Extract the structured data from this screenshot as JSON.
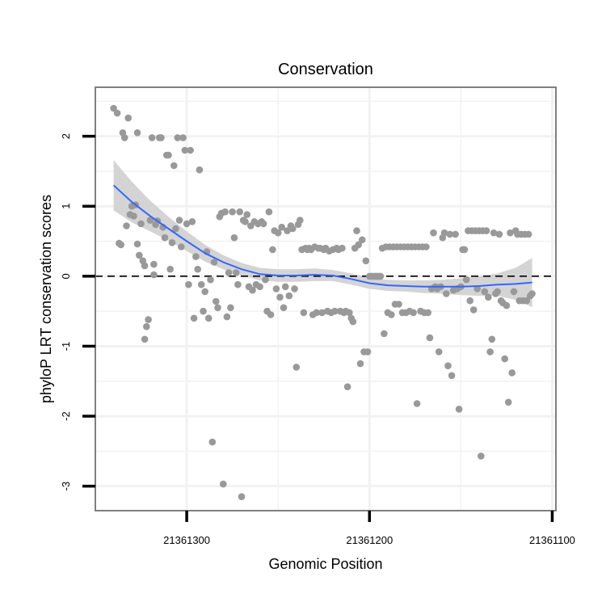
{
  "chart_data": {
    "type": "scatter",
    "title": "Conservation",
    "xlabel": "Genomic Position",
    "ylabel": "phyloP LRT conservation scores",
    "x_reversed": true,
    "xlim": [
      21361350,
      21361098
    ],
    "ylim": [
      -3.35,
      2.7
    ],
    "x_ticks": [
      21361300,
      21361200,
      21361100
    ],
    "x_tick_labels": [
      "21361300",
      "21361200",
      "21361100"
    ],
    "y_ticks": [
      -3,
      -2,
      -1,
      0,
      1,
      2
    ],
    "y_tick_labels": [
      "-3",
      "-2",
      "-1",
      "0",
      "1",
      "2"
    ],
    "reference_line": {
      "y": 0,
      "style": "dashed"
    },
    "colors": {
      "points": "#999999",
      "smooth": "#3366ff",
      "ribbon": "#d4d4d4",
      "panel_border": "#7f7f7f",
      "grid": "#f2f2f2"
    },
    "points": [
      [
        21361340,
        2.4
      ],
      [
        21361338,
        2.33
      ],
      [
        21361337,
        0.47
      ],
      [
        21361336,
        0.45
      ],
      [
        21361335,
        2.05
      ],
      [
        21361334,
        1.98
      ],
      [
        21361333,
        0.72
      ],
      [
        21361332,
        2.26
      ],
      [
        21361331,
        0.88
      ],
      [
        21361330,
        1.0
      ],
      [
        21361329,
        0.86
      ],
      [
        21361328,
        1.02
      ],
      [
        21361327,
        2.05
      ],
      [
        21361327,
        0.46
      ],
      [
        21361326,
        0.3
      ],
      [
        21361325,
        0.75
      ],
      [
        21361324,
        0.22
      ],
      [
        21361323,
        0.15
      ],
      [
        21361323,
        -0.9
      ],
      [
        21361322,
        -0.72
      ],
      [
        21361321,
        -0.62
      ],
      [
        21361320,
        0.8
      ],
      [
        21361319,
        1.98
      ],
      [
        21361318,
        0.02
      ],
      [
        21361318,
        0.17
      ],
      [
        21361317,
        0.74
      ],
      [
        21361316,
        0.79
      ],
      [
        21361315,
        1.98
      ],
      [
        21361314,
        1.98
      ],
      [
        21361313,
        0.7
      ],
      [
        21361312,
        0.55
      ],
      [
        21361311,
        1.73
      ],
      [
        21361310,
        1.73
      ],
      [
        21361309,
        0.1
      ],
      [
        21361308,
        0.48
      ],
      [
        21361307,
        1.58
      ],
      [
        21361306,
        0.68
      ],
      [
        21361305,
        1.98
      ],
      [
        21361304,
        0.8
      ],
      [
        21361303,
        0.42
      ],
      [
        21361302,
        1.98
      ],
      [
        21361301,
        1.8
      ],
      [
        21361300,
        0.75
      ],
      [
        21361299,
        -0.12
      ],
      [
        21361298,
        1.8
      ],
      [
        21361297,
        0.78
      ],
      [
        21361296,
        -0.6
      ],
      [
        21361295,
        0.28
      ],
      [
        21361294,
        0.1
      ],
      [
        21361293,
        1.52
      ],
      [
        21361292,
        -0.12
      ],
      [
        21361291,
        -0.5
      ],
      [
        21361290,
        -0.22
      ],
      [
        21361289,
        0.35
      ],
      [
        21361288,
        -0.6
      ],
      [
        21361287,
        -0.05
      ],
      [
        21361286,
        -2.37
      ],
      [
        21361285,
        0.2
      ],
      [
        21361284,
        -0.36
      ],
      [
        21361283,
        -0.45
      ],
      [
        21361282,
        0.85
      ],
      [
        21361281,
        0.9
      ],
      [
        21361280,
        -2.97
      ],
      [
        21361279,
        0.92
      ],
      [
        21361278,
        -0.58
      ],
      [
        21361277,
        0.05
      ],
      [
        21361276,
        -0.45
      ],
      [
        21361275,
        0.92
      ],
      [
        21361274,
        0.55
      ],
      [
        21361273,
        0.05
      ],
      [
        21361272,
        -0.12
      ],
      [
        21361271,
        0.92
      ],
      [
        21361270,
        -3.15
      ],
      [
        21361269,
        0.8
      ],
      [
        21361268,
        0.78
      ],
      [
        21361267,
        0.88
      ],
      [
        21361266,
        -0.15
      ],
      [
        21361265,
        0.72
      ],
      [
        21361264,
        -0.2
      ],
      [
        21361263,
        0.78
      ],
      [
        21361262,
        -0.12
      ],
      [
        21361261,
        0.75
      ],
      [
        21361260,
        -0.15
      ],
      [
        21361259,
        0.78
      ],
      [
        21361258,
        0.75
      ],
      [
        21361257,
        -0.05
      ],
      [
        21361256,
        -0.5
      ],
      [
        21361255,
        0.92
      ],
      [
        21361254,
        -0.55
      ],
      [
        21361253,
        0.38
      ],
      [
        21361252,
        0.65
      ],
      [
        21361251,
        -0.18
      ],
      [
        21361250,
        0.62
      ],
      [
        21361249,
        -0.3
      ],
      [
        21361248,
        0.7
      ],
      [
        21361247,
        -0.45
      ],
      [
        21361246,
        -0.15
      ],
      [
        21361245,
        0.65
      ],
      [
        21361244,
        -0.28
      ],
      [
        21361243,
        0.72
      ],
      [
        21361242,
        0.68
      ],
      [
        21361241,
        -0.18
      ],
      [
        21361240,
        -1.3
      ],
      [
        21361239,
        0.74
      ],
      [
        21361238,
        0.8
      ],
      [
        21361237,
        0.38
      ],
      [
        21361236,
        -0.52
      ],
      [
        21361235,
        0.4
      ],
      [
        21361234,
        0.38
      ],
      [
        21361233,
        0.4
      ],
      [
        21361232,
        0.38
      ],
      [
        21361231,
        -0.55
      ],
      [
        21361230,
        0.42
      ],
      [
        21361229,
        -0.52
      ],
      [
        21361228,
        0.4
      ],
      [
        21361227,
        0.4
      ],
      [
        21361226,
        -0.52
      ],
      [
        21361225,
        0.38
      ],
      [
        21361224,
        0.4
      ],
      [
        21361223,
        -0.5
      ],
      [
        21361222,
        0.36
      ],
      [
        21361221,
        -0.52
      ],
      [
        21361220,
        0.38
      ],
      [
        21361219,
        -0.5
      ],
      [
        21361218,
        0.4
      ],
      [
        21361217,
        0.38
      ],
      [
        21361216,
        -0.5
      ],
      [
        21361215,
        0.4
      ],
      [
        21361214,
        -0.52
      ],
      [
        21361213,
        -0.5
      ],
      [
        21361212,
        -1.58
      ],
      [
        21361211,
        -0.52
      ],
      [
        21361210,
        -0.6
      ],
      [
        21361209,
        -0.65
      ],
      [
        21361208,
        0.4
      ],
      [
        21361207,
        0.65
      ],
      [
        21361206,
        0.45
      ],
      [
        21361205,
        -1.25
      ],
      [
        21361204,
        0.52
      ],
      [
        21361203,
        -1.08
      ],
      [
        21361202,
        0.22
      ],
      [
        21361201,
        -1.08
      ],
      [
        21361200,
        0.0
      ],
      [
        21361199,
        0.0
      ],
      [
        21361198,
        0.0
      ],
      [
        21361197,
        0.0
      ],
      [
        21361196,
        0.0
      ],
      [
        21361195,
        0.0
      ],
      [
        21361194,
        0.0
      ],
      [
        21361193,
        0.4
      ],
      [
        21361192,
        -0.82
      ],
      [
        21361191,
        0.42
      ],
      [
        21361190,
        -0.52
      ],
      [
        21361189,
        0.42
      ],
      [
        21361188,
        -0.55
      ],
      [
        21361187,
        0.42
      ],
      [
        21361186,
        -0.4
      ],
      [
        21361185,
        0.42
      ],
      [
        21361184,
        -0.4
      ],
      [
        21361183,
        0.42
      ],
      [
        21361182,
        -0.52
      ],
      [
        21361181,
        0.42
      ],
      [
        21361180,
        -0.52
      ],
      [
        21361179,
        0.42
      ],
      [
        21361178,
        -0.5
      ],
      [
        21361177,
        0.42
      ],
      [
        21361176,
        -0.52
      ],
      [
        21361175,
        0.42
      ],
      [
        21361174,
        -1.82
      ],
      [
        21361173,
        0.42
      ],
      [
        21361172,
        -0.5
      ],
      [
        21361171,
        0.42
      ],
      [
        21361170,
        -0.52
      ],
      [
        21361169,
        0.42
      ],
      [
        21361168,
        -0.52
      ],
      [
        21361167,
        -0.88
      ],
      [
        21361166,
        -0.18
      ],
      [
        21361165,
        0.62
      ],
      [
        21361164,
        -0.15
      ],
      [
        21361163,
        -0.18
      ],
      [
        21361162,
        -1.08
      ],
      [
        21361161,
        -0.15
      ],
      [
        21361160,
        0.55
      ],
      [
        21361159,
        0.62
      ],
      [
        21361158,
        -0.25
      ],
      [
        21361157,
        -1.28
      ],
      [
        21361156,
        0.6
      ],
      [
        21361155,
        -1.42
      ],
      [
        21361154,
        -0.2
      ],
      [
        21361153,
        0.6
      ],
      [
        21361152,
        -0.18
      ],
      [
        21361151,
        -1.9
      ],
      [
        21361150,
        -0.15
      ],
      [
        21361149,
        0.38
      ],
      [
        21361148,
        0.38
      ],
      [
        21361147,
        -0.05
      ],
      [
        21361146,
        0.65
      ],
      [
        21361145,
        -0.35
      ],
      [
        21361144,
        0.65
      ],
      [
        21361143,
        -0.48
      ],
      [
        21361142,
        0.65
      ],
      [
        21361141,
        -0.18
      ],
      [
        21361140,
        0.65
      ],
      [
        21361139,
        -2.57
      ],
      [
        21361138,
        0.65
      ],
      [
        21361137,
        -0.22
      ],
      [
        21361136,
        0.65
      ],
      [
        21361135,
        -0.3
      ],
      [
        21361134,
        -1.08
      ],
      [
        21361133,
        -0.9
      ],
      [
        21361132,
        0.62
      ],
      [
        21361131,
        -0.25
      ],
      [
        21361130,
        -0.22
      ],
      [
        21361129,
        0.6
      ],
      [
        21361128,
        -0.35
      ],
      [
        21361127,
        -0.38
      ],
      [
        21361126,
        -1.18
      ],
      [
        21361125,
        -0.42
      ],
      [
        21361124,
        -1.8
      ],
      [
        21361123,
        0.62
      ],
      [
        21361122,
        -1.38
      ],
      [
        21361121,
        -0.22
      ],
      [
        21361120,
        0.65
      ],
      [
        21361119,
        0.6
      ],
      [
        21361118,
        -0.35
      ],
      [
        21361117,
        0.6
      ],
      [
        21361116,
        -0.35
      ],
      [
        21361115,
        0.6
      ],
      [
        21361114,
        -0.35
      ],
      [
        21361113,
        0.6
      ],
      [
        21361112,
        -0.28
      ],
      [
        21361111,
        -0.25
      ]
    ],
    "smooth_line": {
      "x": [
        21361340,
        21361330,
        21361320,
        21361310,
        21361300,
        21361290,
        21361280,
        21361270,
        21361260,
        21361250,
        21361240,
        21361230,
        21361220,
        21361210,
        21361200,
        21361190,
        21361180,
        21361170,
        21361160,
        21361150,
        21361140,
        21361130,
        21361120,
        21361111
      ],
      "y": [
        1.3,
        1.06,
        0.86,
        0.68,
        0.5,
        0.33,
        0.2,
        0.1,
        0.03,
        0.01,
        0.01,
        0.02,
        0.01,
        -0.04,
        -0.1,
        -0.13,
        -0.14,
        -0.15,
        -0.15,
        -0.15,
        -0.14,
        -0.12,
        -0.11,
        -0.09
      ]
    },
    "ci_upper": [
      1.66,
      1.35,
      1.08,
      0.85,
      0.64,
      0.45,
      0.3,
      0.19,
      0.12,
      0.1,
      0.1,
      0.11,
      0.09,
      0.04,
      -0.02,
      -0.05,
      -0.06,
      -0.06,
      -0.05,
      -0.03,
      0.0,
      0.04,
      0.12,
      0.26
    ],
    "ci_lower": [
      0.94,
      0.77,
      0.64,
      0.51,
      0.36,
      0.21,
      0.1,
      0.01,
      -0.06,
      -0.08,
      -0.08,
      -0.07,
      -0.07,
      -0.12,
      -0.18,
      -0.21,
      -0.22,
      -0.24,
      -0.25,
      -0.27,
      -0.28,
      -0.28,
      -0.34,
      -0.44
    ]
  }
}
